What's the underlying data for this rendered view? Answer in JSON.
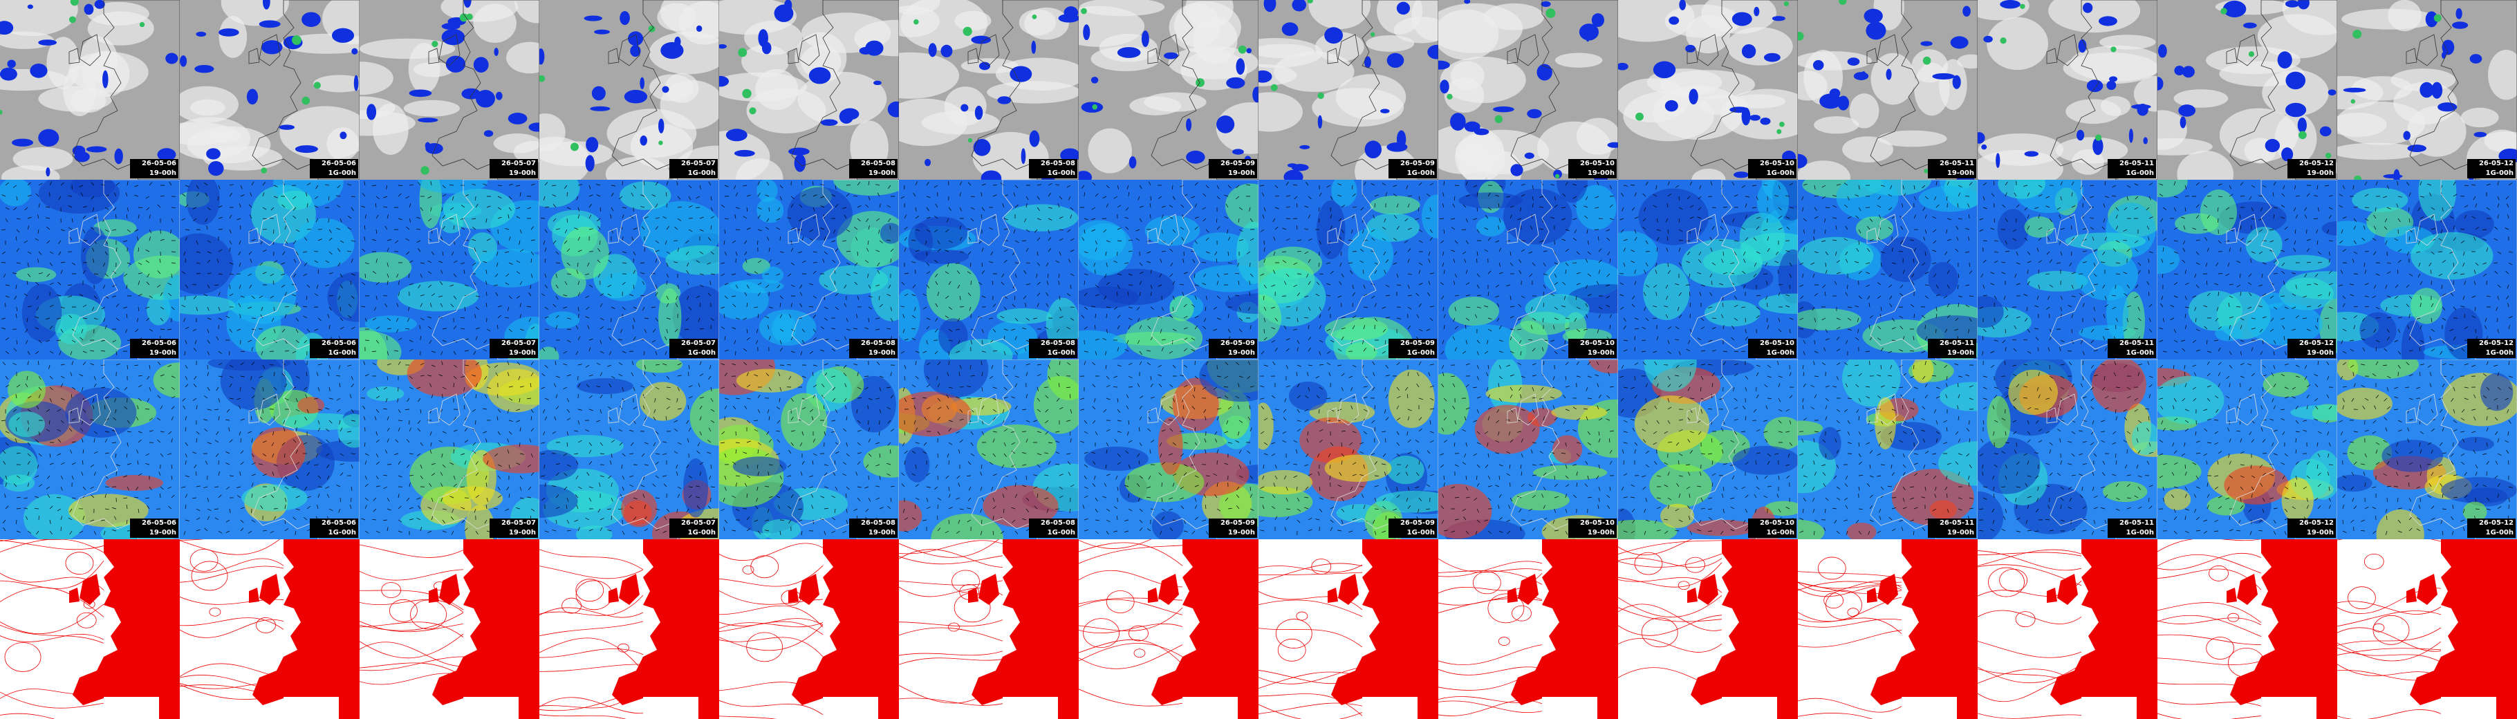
{
  "columns": [
    {
      "date": "26-05-06",
      "time": "19-00h"
    },
    {
      "date": "26-05-06",
      "time": "1G-00h"
    },
    {
      "date": "26-05-07",
      "time": "19-00h"
    },
    {
      "date": "26-05-07",
      "time": "1G-00h"
    },
    {
      "date": "26-05-08",
      "time": "19-00h"
    },
    {
      "date": "26-05-08",
      "time": "1G-00h"
    },
    {
      "date": "26-05-09",
      "time": "19-00h"
    },
    {
      "date": "26-05-09",
      "time": "1G-00h"
    },
    {
      "date": "26-05-10",
      "time": "19-00h"
    },
    {
      "date": "26-05-10",
      "time": "1G-00h"
    },
    {
      "date": "26-05-11",
      "time": "19-00h"
    },
    {
      "date": "26-05-11",
      "time": "1G-00h"
    },
    {
      "date": "26-05-12",
      "time": "19-00h"
    },
    {
      "date": "26-05-12",
      "time": "1G-00h"
    }
  ]
}
